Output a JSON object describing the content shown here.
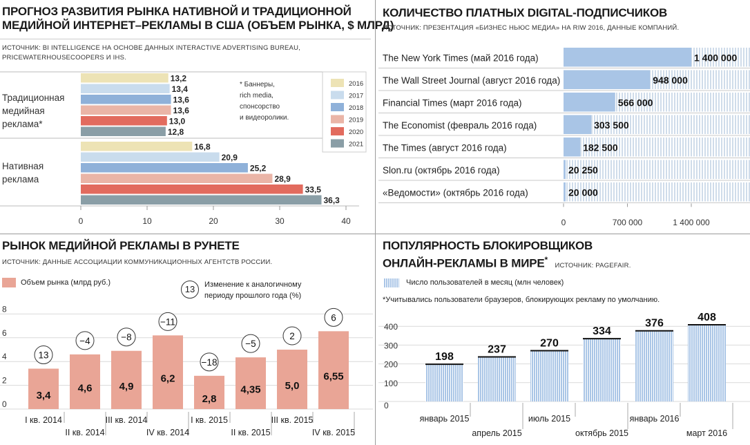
{
  "panel1": {
    "title_line1": "ПРОГНОЗ РАЗВИТИЯ РЫНКА НАТИВНОЙ И ТРАДИЦИОННОЙ",
    "title_line2": "МЕДИЙНОЙ ИНТЕРНЕТ–РЕКЛАМЫ В США (ОБЪЕМ РЫНКА, $ МЛРД)",
    "source_line1": "ИСТОЧНИК: BI INTELLIGENCE НА ОСНОВЕ ДАННЫХ INTERACTIVE ADVERTISING BUREAU,",
    "source_line2": "PRICEWATERHOUSECOOPERS И IHS.",
    "group1_label": [
      "Традиционная",
      "медийная",
      "реклама*"
    ],
    "group2_label": [
      "Нативная",
      "реклама"
    ],
    "footnote": [
      "* Баннеры,",
      "rich media,",
      "спонсорство",
      "и видеоролики."
    ]
  },
  "panel2": {
    "title": "КОЛИЧЕСТВО ПЛАТНЫХ DIGITAL-ПОДПИСЧИКОВ",
    "source": "ИСТОЧНИК: ПРЕЗЕНТАЦИЯ «БИЗНЕС НЬЮС МЕДИА» НА RIW 2016, ДАННЫЕ КОМПАНИЙ."
  },
  "panel3": {
    "title": "РЫНОК МЕДИЙНОЙ РЕКЛАМЫ В РУНЕТЕ",
    "source": "ИСТОЧНИК: ДАННЫЕ АССОЦИАЦИИ КОММУНИКАЦИОННЫХ АГЕНТСТВ РОССИИ.",
    "legend_bar": "Объем рынка (млрд руб.)",
    "legend_circle_sample": "13",
    "legend_circle_text": [
      "Изменение к аналогичному",
      "периоду прошлого года (%)"
    ]
  },
  "panel4": {
    "title_line1": "ПОПУЛЯРНОСТЬ БЛОКИРОВЩИКОВ",
    "title_line2": "ОНЛАЙН-РЕКЛАМЫ В МИРЕ",
    "title_star": "*",
    "source": "ИСТОЧНИК: PAGEFAIR.",
    "legend": "Число пользователей в месяц (млн человек)",
    "note": "*Учитывались пользователи браузеров, блокирующих рекламу по умолчанию."
  },
  "colors": {
    "y2016": "#ede3b5",
    "y2017": "#c9dced",
    "y2018": "#8fb1d9",
    "y2019": "#eab5a7",
    "y2020": "#e26b5e",
    "y2021": "#8a9ea6",
    "runet_bar": "#e9a596",
    "blue_bar": "#a9c5e6"
  },
  "chart_data": [
    {
      "type": "bar",
      "orientation": "horizontal",
      "title": "Прогноз развития рынка нативной и традиционной медийной интернет-рекламы в США (объем рынка, $ млрд)",
      "categories": [
        "Традиционная медийная реклама*",
        "Нативная реклама"
      ],
      "series": [
        {
          "name": "2016",
          "values": [
            13.2,
            16.8
          ],
          "labels": [
            "13,2",
            "16,8"
          ]
        },
        {
          "name": "2017",
          "values": [
            13.4,
            20.9
          ],
          "labels": [
            "13,4",
            "20,9"
          ]
        },
        {
          "name": "2018",
          "values": [
            13.6,
            25.2
          ],
          "labels": [
            "13,6",
            "25,2"
          ]
        },
        {
          "name": "2019",
          "values": [
            13.6,
            28.9
          ],
          "labels": [
            "13,6",
            "28,9"
          ]
        },
        {
          "name": "2020",
          "values": [
            13.0,
            33.5
          ],
          "labels": [
            "13,0",
            "33,5"
          ]
        },
        {
          "name": "2021",
          "values": [
            12.8,
            36.3
          ],
          "labels": [
            "12,8",
            "36,3"
          ]
        }
      ],
      "xlim": [
        0,
        40
      ],
      "xticks": [
        0,
        10,
        20,
        30,
        40
      ],
      "legend": "top-right"
    },
    {
      "type": "bar",
      "orientation": "horizontal",
      "title": "Количество платных digital-подписчиков",
      "categories": [
        "The New York Times (май 2016 года)",
        "The Wall Street Journal (август 2016 года)",
        "Financial Times (март 2016 года)",
        "The Economist (февраль 2016 года)",
        "The Times (август 2016 года)",
        "Slon.ru (октябрь 2016 года)",
        "«Ведомости» (октябрь 2016 года)"
      ],
      "values": [
        1400000,
        948000,
        566000,
        303500,
        182500,
        20250,
        20000
      ],
      "labels": [
        "1 400 000",
        "948 000",
        "566 000",
        "303 500",
        "182 500",
        "20 250",
        "20 000"
      ],
      "xlim": [
        0,
        1400000
      ],
      "xticks": [
        0,
        700000,
        1400000
      ],
      "xtick_labels": [
        "0",
        "700 000",
        "1 400 000"
      ]
    },
    {
      "type": "bar",
      "title": "Рынок медийной рекламы в Рунете",
      "categories": [
        "I кв. 2014",
        "II кв. 2014",
        "III кв. 2014",
        "IV кв. 2014",
        "I кв. 2015",
        "II кв. 2015",
        "III кв. 2015",
        "IV кв. 2015"
      ],
      "values": [
        3.4,
        4.6,
        4.9,
        6.2,
        2.8,
        4.35,
        5.0,
        6.55
      ],
      "labels": [
        "3,4",
        "4,6",
        "4,9",
        "6,2",
        "2,8",
        "4,35",
        "5,0",
        "6,55"
      ],
      "change_pct": [
        13,
        -4,
        -8,
        -11,
        -18,
        -5,
        2,
        6
      ],
      "change_labels": [
        "13",
        "−4",
        "−8",
        "−11",
        "−18",
        "−5",
        "2",
        "6"
      ],
      "ylim": [
        0,
        8
      ],
      "yticks": [
        0,
        2,
        4,
        6,
        8
      ]
    },
    {
      "type": "bar",
      "title": "Популярность блокировщиков онлайн-рекламы в мире",
      "categories": [
        "январь 2015",
        "апрель 2015",
        "июль 2015",
        "октябрь 2015",
        "январь 2016",
        "март 2016"
      ],
      "values": [
        198,
        237,
        270,
        334,
        376,
        408
      ],
      "labels": [
        "198",
        "237",
        "270",
        "334",
        "376",
        "408"
      ],
      "ylim": [
        0,
        400
      ],
      "yticks": [
        0,
        100,
        200,
        300,
        400
      ]
    }
  ]
}
